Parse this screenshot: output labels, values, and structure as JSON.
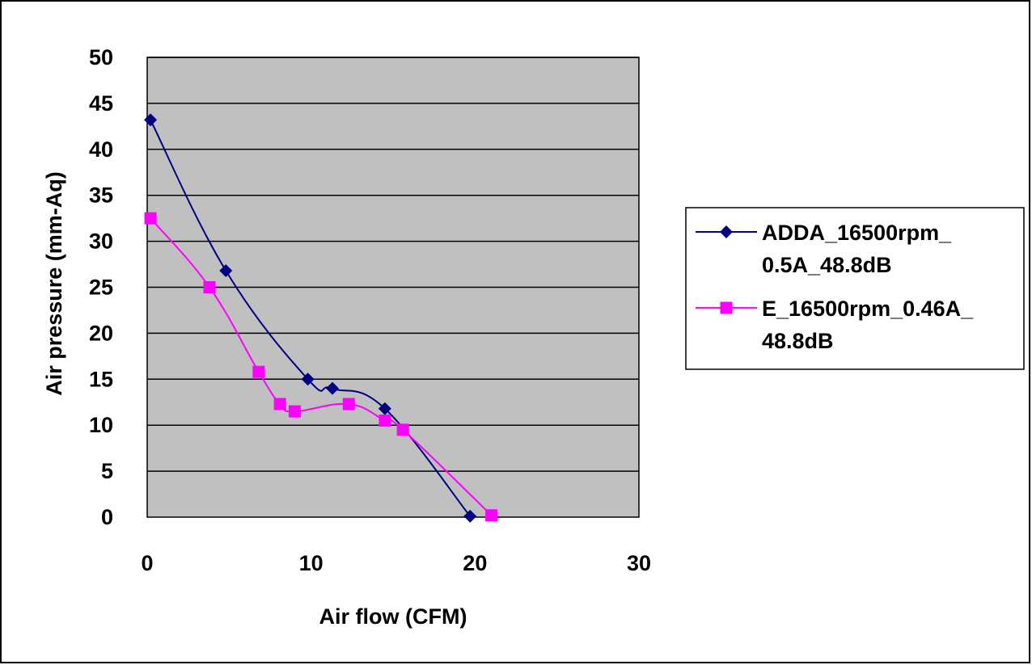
{
  "chart_data": {
    "type": "line",
    "title": "",
    "xlabel": "Air flow (CFM)",
    "ylabel": "Air pressure (mm-Aq)",
    "xlim": [
      0,
      30
    ],
    "ylim": [
      0,
      50
    ],
    "xticks": [
      0,
      10,
      20,
      30
    ],
    "yticks": [
      0,
      5,
      10,
      15,
      20,
      25,
      30,
      35,
      40,
      45,
      50
    ],
    "grid": "horizontal",
    "legend_position": "right",
    "plot_background": "#c0c0c0",
    "series": [
      {
        "name": "ADDA_16500rpm_ 0.5A_48.8dB",
        "legend_lines": [
          "ADDA_16500rpm_",
          "0.5A_48.8dB"
        ],
        "color": "#000080",
        "marker": "diamond",
        "x": [
          0.2,
          4.8,
          9.8,
          11.3,
          14.5,
          19.7
        ],
        "y": [
          43.2,
          26.8,
          15.0,
          14.0,
          11.8,
          0.1
        ]
      },
      {
        "name": "E_16500rpm_0.46A_ 48.8dB",
        "legend_lines": [
          "E_16500rpm_0.46A_",
          "48.8dB"
        ],
        "color": "#ff00ff",
        "marker": "square",
        "x": [
          0.2,
          3.8,
          6.8,
          8.1,
          9.0,
          12.3,
          14.5,
          15.6,
          21.0
        ],
        "y": [
          32.5,
          25.0,
          15.8,
          12.3,
          11.5,
          12.3,
          10.5,
          9.5,
          0.2
        ]
      }
    ]
  }
}
